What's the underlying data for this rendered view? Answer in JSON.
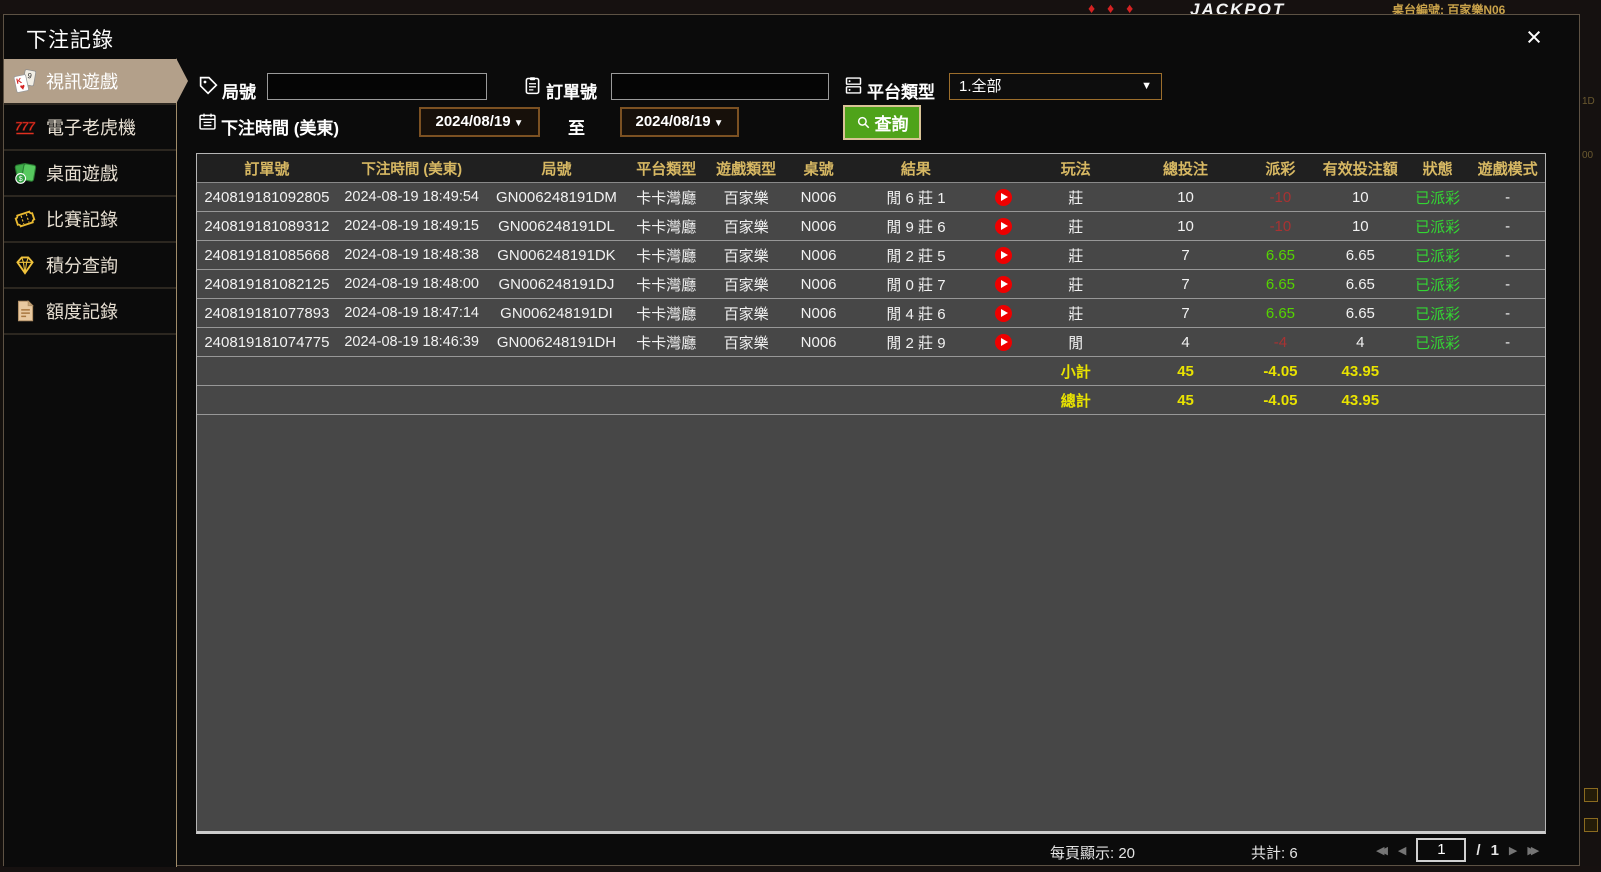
{
  "background": {
    "suits": "♦ ♦ ♦",
    "jackpot_text": "JACKPOT",
    "table_label": "桌台編號: 百家樂N06",
    "right_fragment_top": "1D",
    "right_fragment_mid": "00"
  },
  "modal": {
    "title": "下注記錄",
    "close_label": "×"
  },
  "sidebar": {
    "items": [
      {
        "label": "視訊遊戲",
        "icon": "video-games-cards-icon",
        "selected": true
      },
      {
        "label": "電子老虎機",
        "icon": "slot-777-icon",
        "selected": false
      },
      {
        "label": "桌面遊戲",
        "icon": "table-games-icon",
        "selected": false
      },
      {
        "label": "比賽記錄",
        "icon": "match-ticket-icon",
        "selected": false
      },
      {
        "label": "積分查詢",
        "icon": "points-diamond-icon",
        "selected": false
      },
      {
        "label": "額度記錄",
        "icon": "credit-document-icon",
        "selected": false
      }
    ]
  },
  "filters": {
    "round_label": "局號",
    "round_value": "",
    "order_label": "訂單號",
    "order_value": "",
    "platform_label": "平台類型",
    "platform_value": "1.全部",
    "bet_time_label": "下注時間 (美東)",
    "date_from": "2024/08/19",
    "to_label": "至",
    "date_to": "2024/08/19",
    "search_label": "查詢",
    "dropdown_arrow": "▼"
  },
  "table": {
    "headers": [
      "訂單號",
      "下注時間 (美東)",
      "局號",
      "平台類型",
      "遊戲類型",
      "桌號",
      "結果",
      "",
      "玩法",
      "總投注",
      "派彩",
      "有效投注額",
      "狀態",
      "遊戲模式"
    ],
    "rows": [
      {
        "order": "240819181092805",
        "time": "2024-08-19 18:49:54",
        "round": "GN006248191DM",
        "platform": "卡卡灣廳",
        "game": "百家樂",
        "table": "N006",
        "result": "閒 6 莊 1",
        "play": "莊",
        "total": "10",
        "payout": "-10",
        "valid": "10",
        "status": "已派彩",
        "mode": "-"
      },
      {
        "order": "240819181089312",
        "time": "2024-08-19 18:49:15",
        "round": "GN006248191DL",
        "platform": "卡卡灣廳",
        "game": "百家樂",
        "table": "N006",
        "result": "閒 9 莊 6",
        "play": "莊",
        "total": "10",
        "payout": "-10",
        "valid": "10",
        "status": "已派彩",
        "mode": "-"
      },
      {
        "order": "240819181085668",
        "time": "2024-08-19 18:48:38",
        "round": "GN006248191DK",
        "platform": "卡卡灣廳",
        "game": "百家樂",
        "table": "N006",
        "result": "閒 2 莊 5",
        "play": "莊",
        "total": "7",
        "payout": "6.65",
        "valid": "6.65",
        "status": "已派彩",
        "mode": "-"
      },
      {
        "order": "240819181082125",
        "time": "2024-08-19 18:48:00",
        "round": "GN006248191DJ",
        "platform": "卡卡灣廳",
        "game": "百家樂",
        "table": "N006",
        "result": "閒 0 莊 7",
        "play": "莊",
        "total": "7",
        "payout": "6.65",
        "valid": "6.65",
        "status": "已派彩",
        "mode": "-"
      },
      {
        "order": "240819181077893",
        "time": "2024-08-19 18:47:14",
        "round": "GN006248191DI",
        "platform": "卡卡灣廳",
        "game": "百家樂",
        "table": "N006",
        "result": "閒 4 莊 6",
        "play": "莊",
        "total": "7",
        "payout": "6.65",
        "valid": "6.65",
        "status": "已派彩",
        "mode": "-"
      },
      {
        "order": "240819181074775",
        "time": "2024-08-19 18:46:39",
        "round": "GN006248191DH",
        "platform": "卡卡灣廳",
        "game": "百家樂",
        "table": "N006",
        "result": "閒 2 莊 9",
        "play": "閒",
        "total": "4",
        "payout": "-4",
        "valid": "4",
        "status": "已派彩",
        "mode": "-"
      }
    ],
    "subtotal": {
      "label": "小計",
      "total": "45",
      "payout": "-4.05",
      "valid": "43.95"
    },
    "grand_total": {
      "label": "總計",
      "total": "45",
      "payout": "-4.05",
      "valid": "43.95"
    }
  },
  "footer": {
    "page_size_label": "每頁顯示: 20",
    "total_count_label": "共計: 6",
    "first_icon": "◀◀",
    "prev_icon": "◀",
    "page_value": "1",
    "page_separator": "/",
    "page_total": "1",
    "next_icon": "▶",
    "last_icon": "▶▶"
  },
  "colors": {
    "accent_gold": "#d7b863",
    "selected_tan": "#b3a08a",
    "win_green": "#55d400",
    "status_green": "#33d633",
    "loss_red": "#a83232",
    "totals_yellow": "#e9e300",
    "query_green": "#4fa31a",
    "date_border_brown": "#7c5122",
    "row_gray": "#474747"
  }
}
